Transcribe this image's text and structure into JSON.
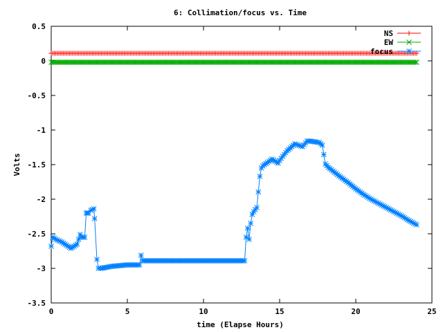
{
  "chart_data": {
    "type": "line",
    "title": "6: Collimation/focus vs. Time",
    "xlabel": "time (Elapse Hours)",
    "ylabel": "Volts",
    "xlim": [
      0,
      25
    ],
    "ylim": [
      -3.5,
      0.5
    ],
    "xticks": [
      0,
      5,
      10,
      15,
      20,
      25
    ],
    "yticks": [
      -3.5,
      -3,
      -2.5,
      -2,
      -1.5,
      -1,
      -0.5,
      0,
      0.5
    ],
    "xtick_labels": [
      "0",
      "5",
      "10",
      "15",
      "20",
      "25"
    ],
    "ytick_labels": [
      "-3.5",
      "-3",
      "-2.5",
      "-2",
      "-1.5",
      "-1",
      "-0.5",
      "0",
      "0.5"
    ],
    "grid": false,
    "legend_position": "top-right",
    "series": [
      {
        "name": "NS",
        "color": "#ff0000",
        "marker": "plus",
        "x": [
          0,
          24
        ],
        "y": [
          0.11,
          0.11
        ]
      },
      {
        "name": "EW",
        "color": "#00aa00",
        "marker": "cross",
        "x": [
          0,
          24
        ],
        "y": [
          -0.02,
          -0.02
        ]
      },
      {
        "name": "focus",
        "color": "#0080ff",
        "marker": "star",
        "x": [
          0.0,
          0.1,
          0.3,
          0.5,
          0.7,
          0.9,
          1.1,
          1.3,
          1.5,
          1.7,
          1.9,
          2.0,
          2.2,
          2.3,
          2.45,
          2.6,
          2.8,
          2.85,
          3.0,
          3.1,
          3.25,
          3.5,
          4.0,
          4.5,
          5.0,
          5.5,
          5.8,
          5.9,
          6.0,
          7.0,
          8.0,
          9.0,
          10.0,
          11.0,
          12.0,
          12.7,
          12.8,
          12.9,
          13.0,
          13.1,
          13.2,
          13.3,
          13.5,
          13.7,
          13.8,
          13.9,
          14.0,
          14.2,
          14.5,
          14.9,
          15.0,
          15.2,
          15.5,
          16.0,
          16.5,
          16.8,
          17.0,
          17.3,
          17.6,
          17.8,
          18.0,
          18.2,
          18.6,
          19.0,
          19.5,
          20.0,
          20.5,
          21.0,
          21.5,
          22.0,
          22.5,
          23.0,
          23.5,
          24.0
        ],
        "y": [
          -2.68,
          -2.55,
          -2.58,
          -2.6,
          -2.62,
          -2.65,
          -2.68,
          -2.71,
          -2.68,
          -2.65,
          -2.51,
          -2.55,
          -2.55,
          -2.2,
          -2.2,
          -2.16,
          -2.14,
          -2.28,
          -2.87,
          -3.0,
          -3.0,
          -2.99,
          -2.97,
          -2.96,
          -2.95,
          -2.95,
          -2.95,
          -2.81,
          -2.89,
          -2.89,
          -2.89,
          -2.89,
          -2.89,
          -2.89,
          -2.89,
          -2.89,
          -2.55,
          -2.42,
          -2.58,
          -2.35,
          -2.22,
          -2.18,
          -2.12,
          -1.67,
          -1.55,
          -1.52,
          -1.5,
          -1.47,
          -1.42,
          -1.48,
          -1.44,
          -1.38,
          -1.3,
          -1.2,
          -1.24,
          -1.16,
          -1.16,
          -1.17,
          -1.18,
          -1.22,
          -1.49,
          -1.54,
          -1.61,
          -1.68,
          -1.76,
          -1.85,
          -1.93,
          -2.0,
          -2.06,
          -2.12,
          -2.18,
          -2.24,
          -2.31,
          -2.37
        ]
      }
    ]
  }
}
